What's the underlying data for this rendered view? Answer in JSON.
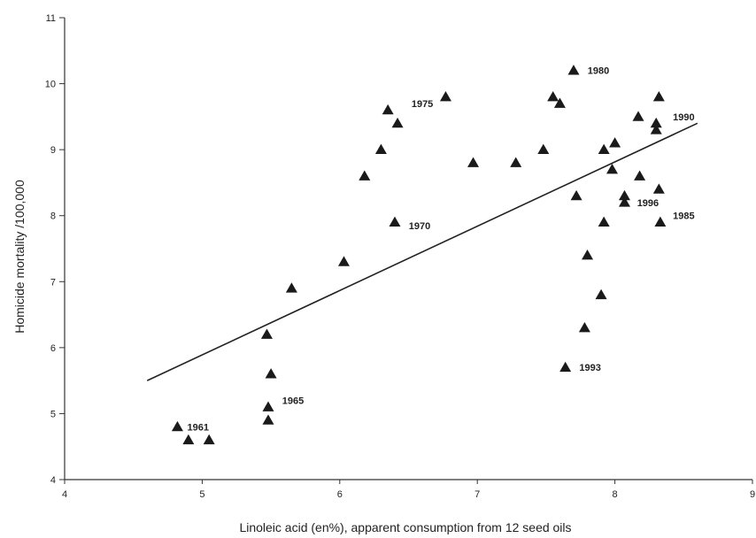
{
  "chart_data": {
    "type": "scatter",
    "xlabel": "Linoleic acid  (en%), apparent consumption from 12 seed oils",
    "ylabel": "Homicide mortality /100,000",
    "xlim": [
      4,
      9
    ],
    "ylim": [
      4,
      11
    ],
    "xticks": [
      "4",
      "5",
      "6",
      "7",
      "8",
      "9"
    ],
    "yticks": [
      "4",
      "5",
      "6",
      "7",
      "8",
      "9",
      "10",
      "11"
    ],
    "marker": "triangle",
    "marker_color": "#1a1a1a",
    "grid": false,
    "points": [
      {
        "x": 4.82,
        "y": 4.8
      },
      {
        "x": 4.9,
        "y": 4.6
      },
      {
        "x": 5.05,
        "y": 4.6
      },
      {
        "x": 5.48,
        "y": 4.9
      },
      {
        "x": 5.48,
        "y": 5.1
      },
      {
        "x": 5.5,
        "y": 5.6
      },
      {
        "x": 5.47,
        "y": 6.2
      },
      {
        "x": 5.65,
        "y": 6.9
      },
      {
        "x": 6.03,
        "y": 7.3
      },
      {
        "x": 6.18,
        "y": 8.6
      },
      {
        "x": 6.3,
        "y": 9.0
      },
      {
        "x": 6.35,
        "y": 9.6
      },
      {
        "x": 6.42,
        "y": 9.4
      },
      {
        "x": 6.4,
        "y": 7.9
      },
      {
        "x": 6.77,
        "y": 9.8
      },
      {
        "x": 6.97,
        "y": 8.8
      },
      {
        "x": 7.28,
        "y": 8.8
      },
      {
        "x": 7.48,
        "y": 9.0
      },
      {
        "x": 7.55,
        "y": 9.8
      },
      {
        "x": 7.6,
        "y": 9.7
      },
      {
        "x": 7.7,
        "y": 10.2
      },
      {
        "x": 7.72,
        "y": 8.3
      },
      {
        "x": 7.64,
        "y": 5.7
      },
      {
        "x": 7.78,
        "y": 6.3
      },
      {
        "x": 7.8,
        "y": 7.4
      },
      {
        "x": 7.9,
        "y": 6.8
      },
      {
        "x": 7.92,
        "y": 7.9
      },
      {
        "x": 7.92,
        "y": 9.0
      },
      {
        "x": 7.98,
        "y": 8.7
      },
      {
        "x": 8.0,
        "y": 9.1
      },
      {
        "x": 8.07,
        "y": 8.3
      },
      {
        "x": 8.07,
        "y": 8.2
      },
      {
        "x": 8.17,
        "y": 9.5
      },
      {
        "x": 8.18,
        "y": 8.6
      },
      {
        "x": 8.3,
        "y": 9.3
      },
      {
        "x": 8.3,
        "y": 9.4
      },
      {
        "x": 8.32,
        "y": 9.8
      },
      {
        "x": 8.32,
        "y": 8.4
      },
      {
        "x": 8.33,
        "y": 7.9
      }
    ],
    "annotations": [
      {
        "text": "1961",
        "x": 4.84,
        "y": 4.8
      },
      {
        "text": "1965",
        "x": 5.53,
        "y": 5.2
      },
      {
        "text": "1970",
        "x": 6.45,
        "y": 7.85
      },
      {
        "text": "1975",
        "x": 6.47,
        "y": 9.7
      },
      {
        "text": "1980",
        "x": 7.75,
        "y": 10.2
      },
      {
        "text": "1990",
        "x": 8.37,
        "y": 9.5
      },
      {
        "text": "1996",
        "x": 8.11,
        "y": 8.2
      },
      {
        "text": "1985",
        "x": 8.37,
        "y": 8.0
      },
      {
        "text": "1993",
        "x": 7.69,
        "y": 5.7
      }
    ],
    "trendline": {
      "x1": 4.6,
      "y1": 5.5,
      "x2": 8.6,
      "y2": 9.4
    }
  }
}
